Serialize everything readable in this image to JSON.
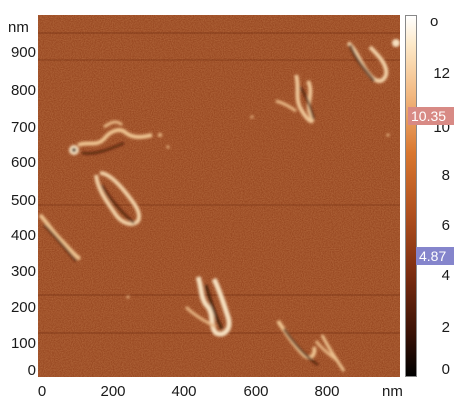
{
  "image": {
    "type": "afm-height-map",
    "y_unit": "nm",
    "x_unit": "nm",
    "y_ticks": [
      "900",
      "800",
      "700",
      "600",
      "500",
      "400",
      "300",
      "200",
      "100",
      "0"
    ],
    "x_ticks": [
      "0",
      "200",
      "400",
      "600",
      "800"
    ],
    "colorbar": {
      "unit_label": "o",
      "ticks": [
        "12",
        "10",
        "8",
        "6",
        "4",
        "2",
        "0"
      ],
      "marker_high": "10.35",
      "marker_low": "4.87",
      "colors": {
        "high": "#ffffff",
        "mid": "#d9772f",
        "low": "#000000"
      }
    },
    "marker_colors": {
      "high": "#d88a85",
      "low": "#8585cc"
    },
    "background_color": "#8a3a16"
  }
}
